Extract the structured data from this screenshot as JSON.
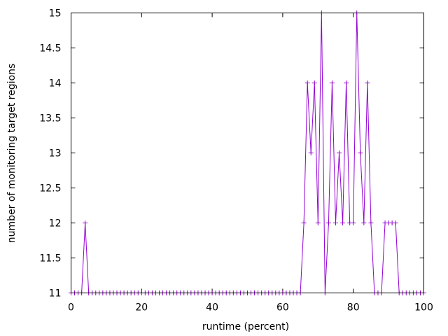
{
  "chart_data": {
    "type": "line",
    "title": "",
    "xlabel": "runtime (percent)",
    "ylabel": "number of monitoring target regions",
    "xlim": [
      0,
      100
    ],
    "ylim": [
      11,
      15
    ],
    "xticks": [
      0,
      20,
      40,
      60,
      80,
      100
    ],
    "yticks": [
      11,
      11.5,
      12,
      12.5,
      13,
      13.5,
      14,
      14.5,
      15
    ],
    "xtick_labels": [
      "0",
      "20",
      "40",
      "60",
      "80",
      "100"
    ],
    "ytick_labels": [
      "11",
      "11.5",
      "12",
      "12.5",
      "13",
      "13.5",
      "14",
      "14.5",
      "15"
    ],
    "grid": false,
    "legend": "none",
    "marker": "plus",
    "color": "#9400d3",
    "series": [
      {
        "x": [
          0,
          1,
          2,
          3,
          4,
          5,
          6,
          7,
          8,
          9,
          10,
          11,
          12,
          13,
          14,
          15,
          16,
          17,
          18,
          19,
          20,
          21,
          22,
          23,
          24,
          25,
          26,
          27,
          28,
          29,
          30,
          31,
          32,
          33,
          34,
          35,
          36,
          37,
          38,
          39,
          40,
          41,
          42,
          43,
          44,
          45,
          46,
          47,
          48,
          49,
          50,
          51,
          52,
          53,
          54,
          55,
          56,
          57,
          58,
          59,
          60,
          61,
          62,
          63,
          64,
          65,
          66,
          67,
          68,
          69,
          70,
          71,
          72,
          73,
          74,
          75,
          76,
          77,
          78,
          79,
          80,
          81,
          82,
          83,
          84,
          85,
          86,
          87,
          88,
          89,
          90,
          91,
          92,
          93,
          94,
          95,
          96,
          97,
          98,
          99,
          100
        ],
        "y": [
          11,
          11,
          11,
          11,
          12,
          11,
          11,
          11,
          11,
          11,
          11,
          11,
          11,
          11,
          11,
          11,
          11,
          11,
          11,
          11,
          11,
          11,
          11,
          11,
          11,
          11,
          11,
          11,
          11,
          11,
          11,
          11,
          11,
          11,
          11,
          11,
          11,
          11,
          11,
          11,
          11,
          11,
          11,
          11,
          11,
          11,
          11,
          11,
          11,
          11,
          11,
          11,
          11,
          11,
          11,
          11,
          11,
          11,
          11,
          11,
          11,
          11,
          11,
          11,
          11,
          11,
          12,
          14,
          13,
          14,
          12,
          15,
          11,
          12,
          14,
          12,
          13,
          12,
          14,
          12,
          12,
          15,
          13,
          12,
          14,
          12,
          11,
          11,
          11,
          12,
          12,
          12,
          12,
          11,
          11,
          11,
          11,
          11,
          11,
          11,
          11
        ]
      }
    ]
  }
}
